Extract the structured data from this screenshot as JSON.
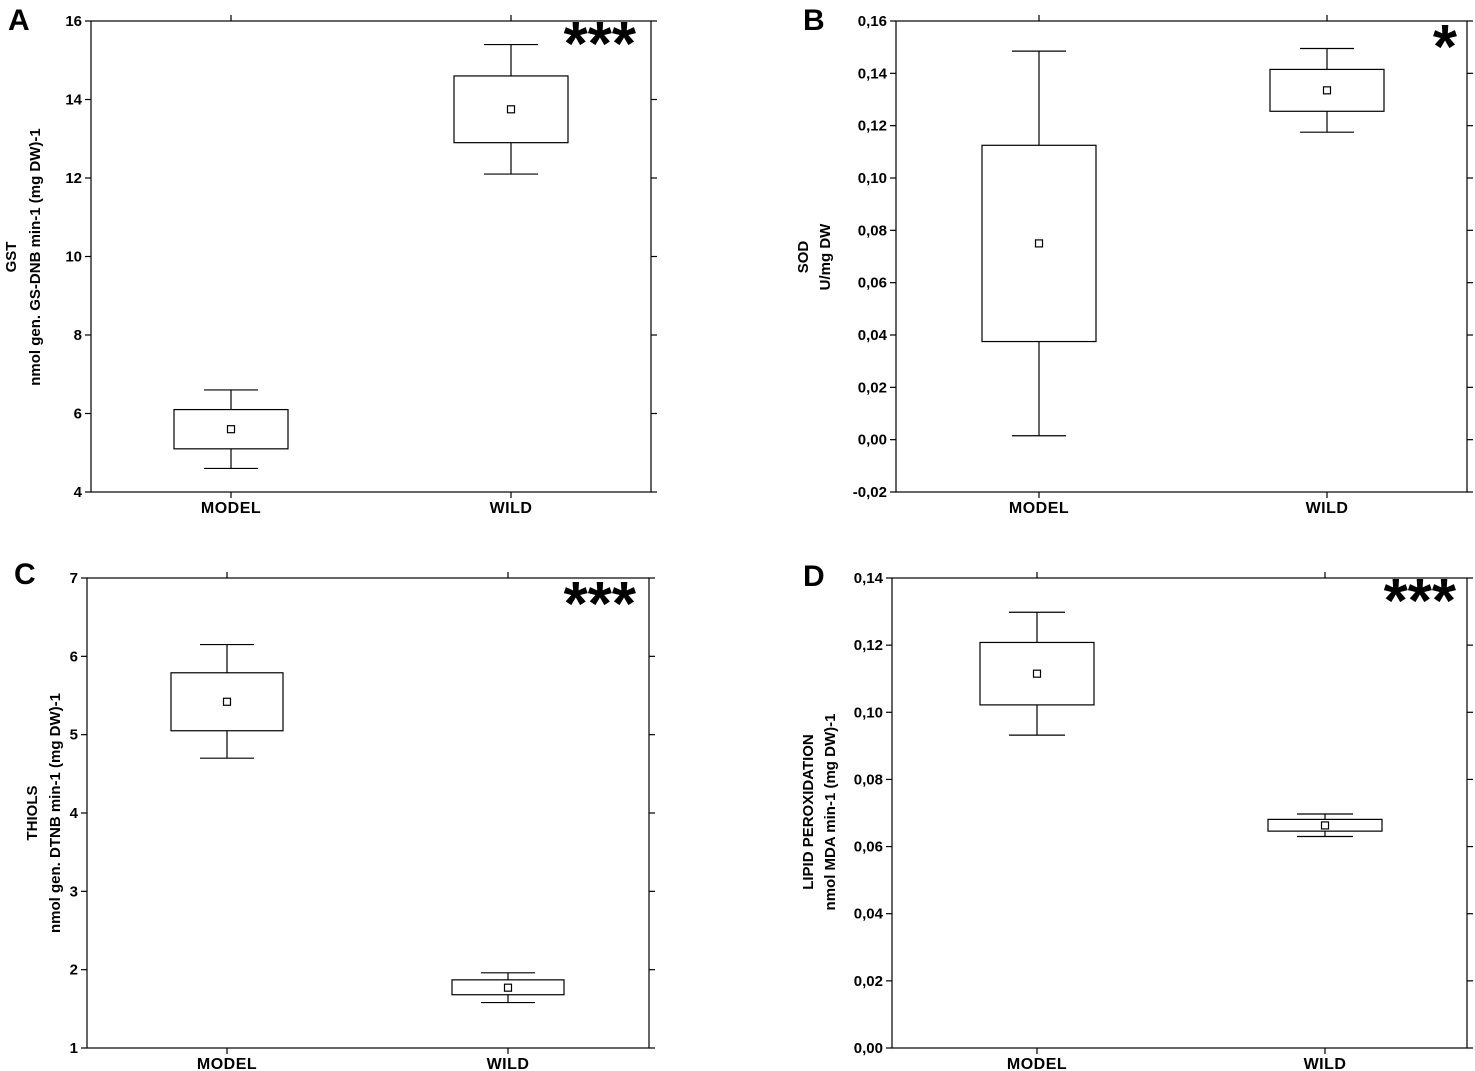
{
  "chart_data": [
    {
      "type": "box",
      "panel": "A",
      "ylabel_lines": [
        "GST",
        "nmol gen. GS-DNB min-1 (mg DW)-1"
      ],
      "ylim": [
        4,
        16
      ],
      "yticks": [
        "4",
        "6",
        "8",
        "10",
        "12",
        "14",
        "16"
      ],
      "yticks_values": [
        4,
        6,
        8,
        10,
        12,
        14,
        16
      ],
      "categories": [
        "MODEL",
        "WILD"
      ],
      "significance": "***",
      "boxes": [
        {
          "mean": 5.6,
          "box_low": 5.1,
          "box_high": 6.1,
          "whisker_low": 4.6,
          "whisker_high": 6.6
        },
        {
          "mean": 13.75,
          "box_low": 12.9,
          "box_high": 14.6,
          "whisker_low": 12.1,
          "whisker_high": 15.4
        }
      ]
    },
    {
      "type": "box",
      "panel": "B",
      "ylabel_lines": [
        "SOD",
        "U/mg DW"
      ],
      "ylim": [
        -0.02,
        0.16
      ],
      "yticks": [
        "-0,02",
        "0,00",
        "0,02",
        "0,04",
        "0,06",
        "0,08",
        "0,10",
        "0,12",
        "0,14",
        "0,16"
      ],
      "yticks_values": [
        -0.02,
        0,
        0.02,
        0.04,
        0.06,
        0.08,
        0.1,
        0.12,
        0.14,
        0.16
      ],
      "categories": [
        "MODEL",
        "WILD"
      ],
      "significance": "*",
      "boxes": [
        {
          "mean": 0.075,
          "box_low": 0.0375,
          "box_high": 0.1125,
          "whisker_low": 0.0015,
          "whisker_high": 0.1485
        },
        {
          "mean": 0.1335,
          "box_low": 0.1255,
          "box_high": 0.1415,
          "whisker_low": 0.1175,
          "whisker_high": 0.1495
        }
      ]
    },
    {
      "type": "box",
      "panel": "C",
      "ylabel_lines": [
        "THIOLS",
        "nmol gen. DTNB min-1 (mg DW)-1"
      ],
      "ylim": [
        1,
        7
      ],
      "yticks": [
        "1",
        "2",
        "3",
        "4",
        "5",
        "6",
        "7"
      ],
      "yticks_values": [
        1,
        2,
        3,
        4,
        5,
        6,
        7
      ],
      "categories": [
        "MODEL",
        "WILD"
      ],
      "significance": "***",
      "boxes": [
        {
          "mean": 5.42,
          "box_low": 5.05,
          "box_high": 5.79,
          "whisker_low": 4.7,
          "whisker_high": 6.15
        },
        {
          "mean": 1.77,
          "box_low": 1.68,
          "box_high": 1.87,
          "whisker_low": 1.58,
          "whisker_high": 1.96
        }
      ]
    },
    {
      "type": "box",
      "panel": "D",
      "ylabel_lines": [
        "LIPID PEROXIDATION",
        "nmol MDA min-1 (mg DW)-1"
      ],
      "ylim": [
        0,
        0.14
      ],
      "yticks": [
        "0,00",
        "0,02",
        "0,04",
        "0,06",
        "0,08",
        "0,10",
        "0,12",
        "0,14"
      ],
      "yticks_values": [
        0,
        0.02,
        0.04,
        0.06,
        0.08,
        0.1,
        0.12,
        0.14
      ],
      "categories": [
        "MODEL",
        "WILD"
      ],
      "significance": "***",
      "boxes": [
        {
          "mean": 0.1115,
          "box_low": 0.1022,
          "box_high": 0.1208,
          "whisker_low": 0.0932,
          "whisker_high": 0.1298
        },
        {
          "mean": 0.0663,
          "box_low": 0.0646,
          "box_high": 0.0681,
          "whisker_low": 0.063,
          "whisker_high": 0.0697
        }
      ]
    }
  ]
}
